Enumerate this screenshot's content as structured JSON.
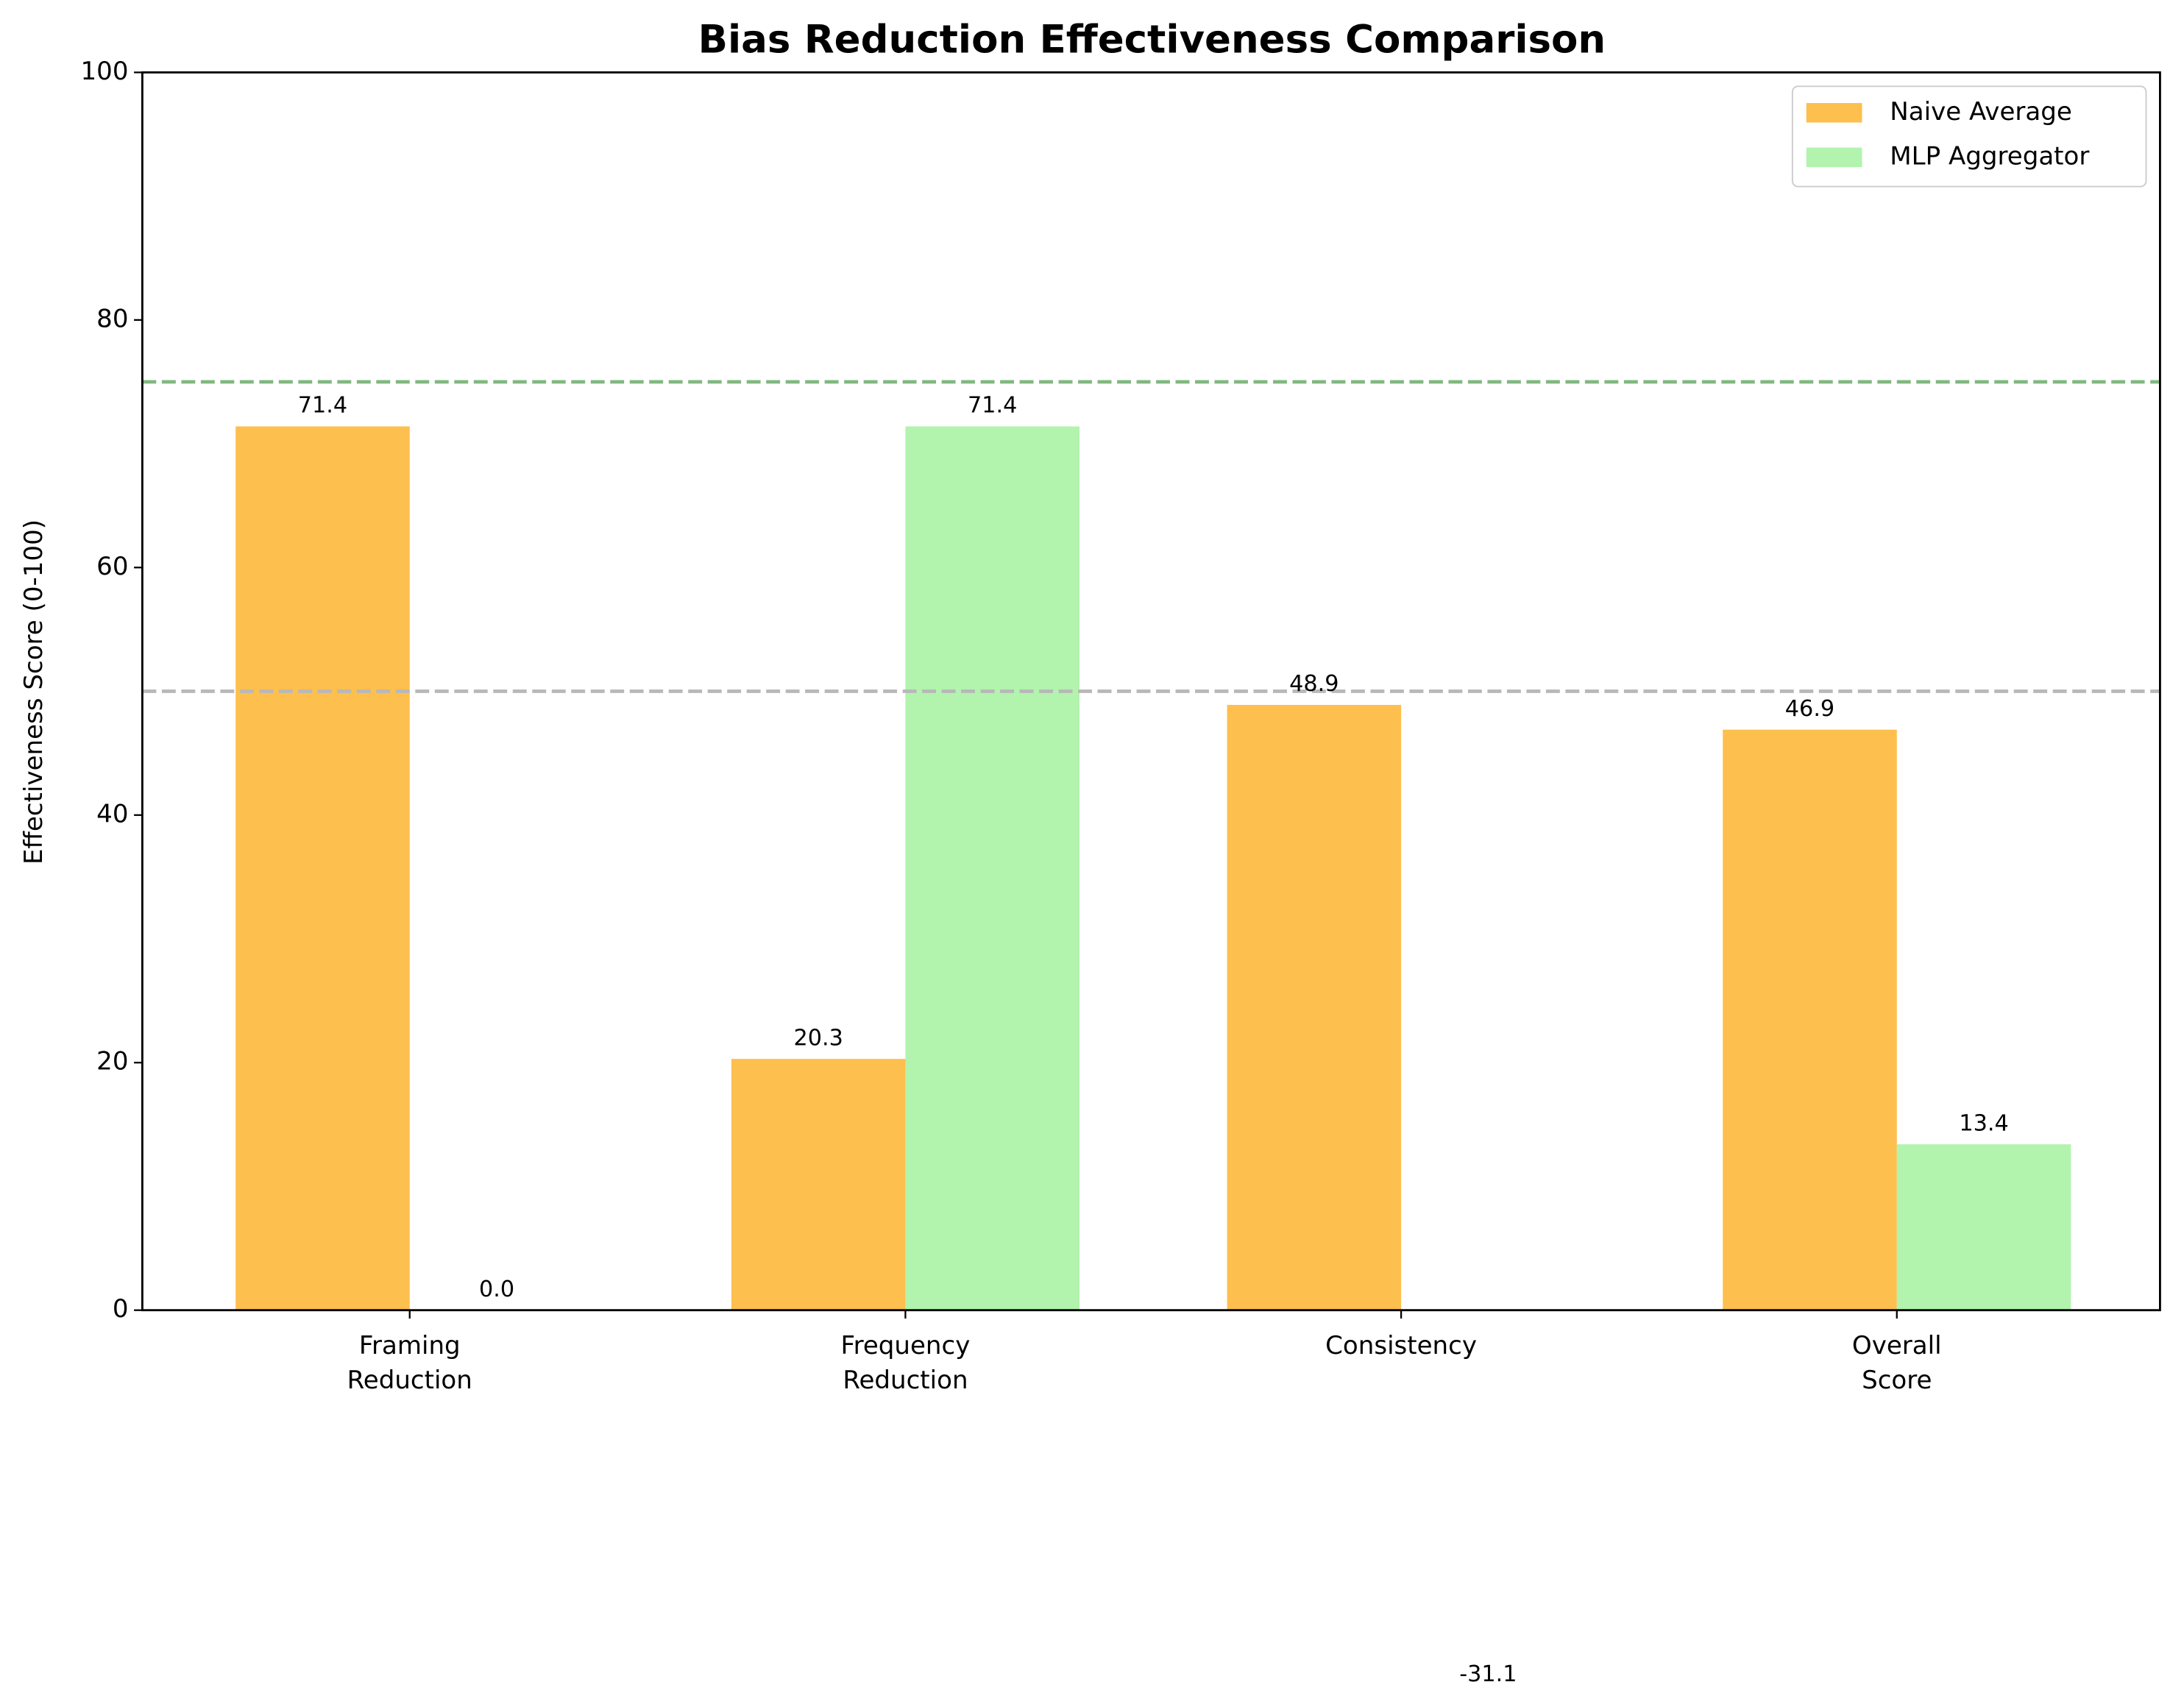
{
  "chart_data": {
    "type": "bar",
    "title": "Bias Reduction Effectiveness Comparison",
    "y_label": "Effectiveness Score (0-100)",
    "categories": [
      "Framing\nReduction",
      "Frequency\nReduction",
      "Consistency",
      "Overall\nScore"
    ],
    "series": [
      {
        "name": "Naive Average",
        "color": "#fdbf4d",
        "values": [
          71.4,
          20.3,
          48.9,
          46.9
        ]
      },
      {
        "name": "MLP Aggregator",
        "color": "#b2f3ae",
        "values": [
          0.0,
          71.4,
          -31.1,
          13.4
        ],
        "value_labels": [
          "0.0",
          "71.4",
          "-31.1",
          "13.4"
        ]
      }
    ],
    "reference_lines": [
      {
        "value": 75,
        "color": "#80b880"
      },
      {
        "value": 50,
        "color": "#b8b8b8"
      }
    ],
    "ylim": [
      0,
      100
    ],
    "yticks": [
      0,
      20,
      40,
      60,
      80,
      100
    ],
    "grid": false,
    "legend": "upper right"
  }
}
